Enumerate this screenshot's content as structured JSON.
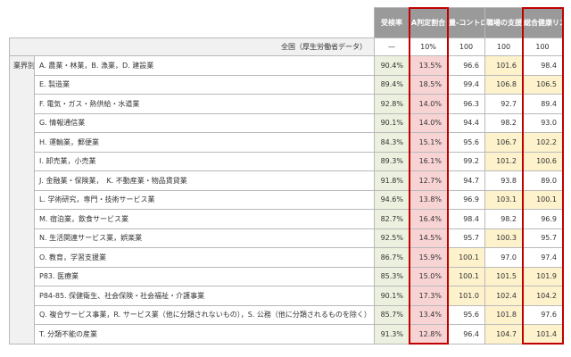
{
  "columns": {
    "exam_rate": "受検率",
    "a_ratio": "A判定割合",
    "control": "量-コントロール",
    "support": "職場の支援",
    "risk": "総合健康リスク"
  },
  "national": {
    "label": "全国（厚生労働省データ）",
    "exam_rate": "—",
    "a_ratio": "10%",
    "control": "100",
    "support": "100",
    "risk": "100"
  },
  "side_label": "業界別",
  "rows": [
    {
      "cat": "A. 農業・林業，B. 漁業，D. 建設業",
      "exam_rate": "90.4%",
      "a_ratio": "13.5%",
      "control": "96.6",
      "support": "101.6",
      "risk": "98.4"
    },
    {
      "cat": "E. 製造業",
      "exam_rate": "89.4%",
      "a_ratio": "18.5%",
      "control": "99.4",
      "support": "106.8",
      "risk": "106.5"
    },
    {
      "cat": "F. 電気・ガス・熱供給・水道業",
      "exam_rate": "92.8%",
      "a_ratio": "14.0%",
      "control": "96.3",
      "support": "92.7",
      "risk": "89.4"
    },
    {
      "cat": "G. 情報通信業",
      "exam_rate": "90.1%",
      "a_ratio": "14.0%",
      "control": "94.4",
      "support": "98.2",
      "risk": "93.0"
    },
    {
      "cat": "H. 運輸業，郵便業",
      "exam_rate": "84.3%",
      "a_ratio": "15.1%",
      "control": "95.6",
      "support": "106.7",
      "risk": "102.2"
    },
    {
      "cat": "I. 卸売業，小売業",
      "exam_rate": "89.3%",
      "a_ratio": "16.1%",
      "control": "99.2",
      "support": "101.2",
      "risk": "100.6"
    },
    {
      "cat": "J. 金融業・保険業，　K. 不動産業・物品賃貸業",
      "exam_rate": "91.8%",
      "a_ratio": "12.7%",
      "control": "94.7",
      "support": "93.8",
      "risk": "89.0"
    },
    {
      "cat": "L. 学術研究，専門・技術サービス業",
      "exam_rate": "94.6%",
      "a_ratio": "13.8%",
      "control": "96.9",
      "support": "103.1",
      "risk": "100.1"
    },
    {
      "cat": "M. 宿泊業，飲食サービス業",
      "exam_rate": "82.7%",
      "a_ratio": "16.4%",
      "control": "98.4",
      "support": "98.2",
      "risk": "96.9"
    },
    {
      "cat": "N. 生活関連サービス業，娯楽業",
      "exam_rate": "92.5%",
      "a_ratio": "14.5%",
      "control": "95.7",
      "support": "100.3",
      "risk": "95.7"
    },
    {
      "cat": "O. 教育，学習支援業",
      "exam_rate": "86.7%",
      "a_ratio": "15.9%",
      "control": "100.1",
      "support": "97.0",
      "risk": "97.4"
    },
    {
      "cat": "P83. 医療業",
      "exam_rate": "85.3%",
      "a_ratio": "15.0%",
      "control": "100.1",
      "support": "101.5",
      "risk": "101.9"
    },
    {
      "cat": "P84-85. 保健衛生、社会保険・社会福祉・介護事業",
      "exam_rate": "90.1%",
      "a_ratio": "17.3%",
      "control": "101.0",
      "support": "102.4",
      "risk": "104.2"
    },
    {
      "cat": "Q. 複合サービス事業，R. サービス業（他に分類されないもの），S. 公務（他に分類されるものを除く）",
      "exam_rate": "85.7%",
      "a_ratio": "13.4%",
      "control": "95.6",
      "support": "101.8",
      "risk": "97.6"
    },
    {
      "cat": "T. 分類不能の産業",
      "exam_rate": "91.3%",
      "a_ratio": "12.8%",
      "control": "96.4",
      "support": "104.7",
      "risk": "101.4"
    }
  ],
  "colors": {
    "header_bg": "#9a9a9a",
    "exam_rate_bg": "#ebf1de",
    "a_ratio_bg": "#f8d3d4",
    "highlight_bg": "#fdf2cc",
    "highlight_border": "#c00000"
  }
}
